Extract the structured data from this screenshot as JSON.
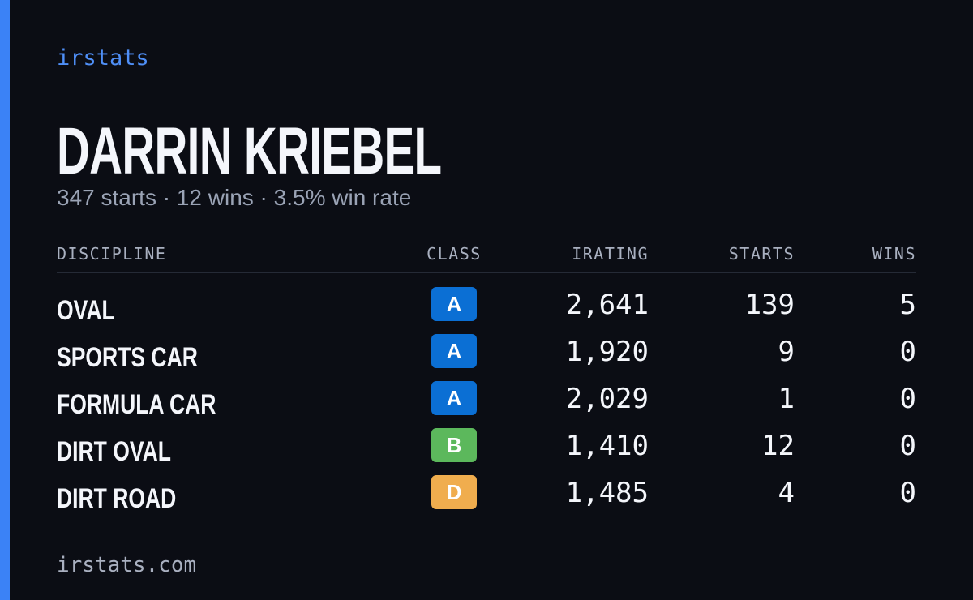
{
  "brand": "irstats",
  "name": "DARRIN KRIEBEL",
  "summary": "347 starts · 12 wins · 3.5% win rate",
  "table": {
    "header": [
      "DISCIPLINE",
      "CLASS",
      "IRATING",
      "STARTS",
      "WINS"
    ],
    "rows": [
      {
        "discipline": "OVAL",
        "class": "A",
        "class_color": "#0b6fd4",
        "irating": "2,641",
        "starts": "139",
        "wins": "5"
      },
      {
        "discipline": "SPORTS CAR",
        "class": "A",
        "class_color": "#0b6fd4",
        "irating": "1,920",
        "starts": "9",
        "wins": "0"
      },
      {
        "discipline": "FORMULA CAR",
        "class": "A",
        "class_color": "#0b6fd4",
        "irating": "2,029",
        "starts": "1",
        "wins": "0"
      },
      {
        "discipline": "DIRT OVAL",
        "class": "B",
        "class_color": "#5cb85c",
        "irating": "1,410",
        "starts": "12",
        "wins": "0"
      },
      {
        "discipline": "DIRT ROAD",
        "class": "D",
        "class_color": "#f0ad4e",
        "irating": "1,485",
        "starts": "4",
        "wins": "0"
      }
    ]
  },
  "footer": "irstats.com"
}
